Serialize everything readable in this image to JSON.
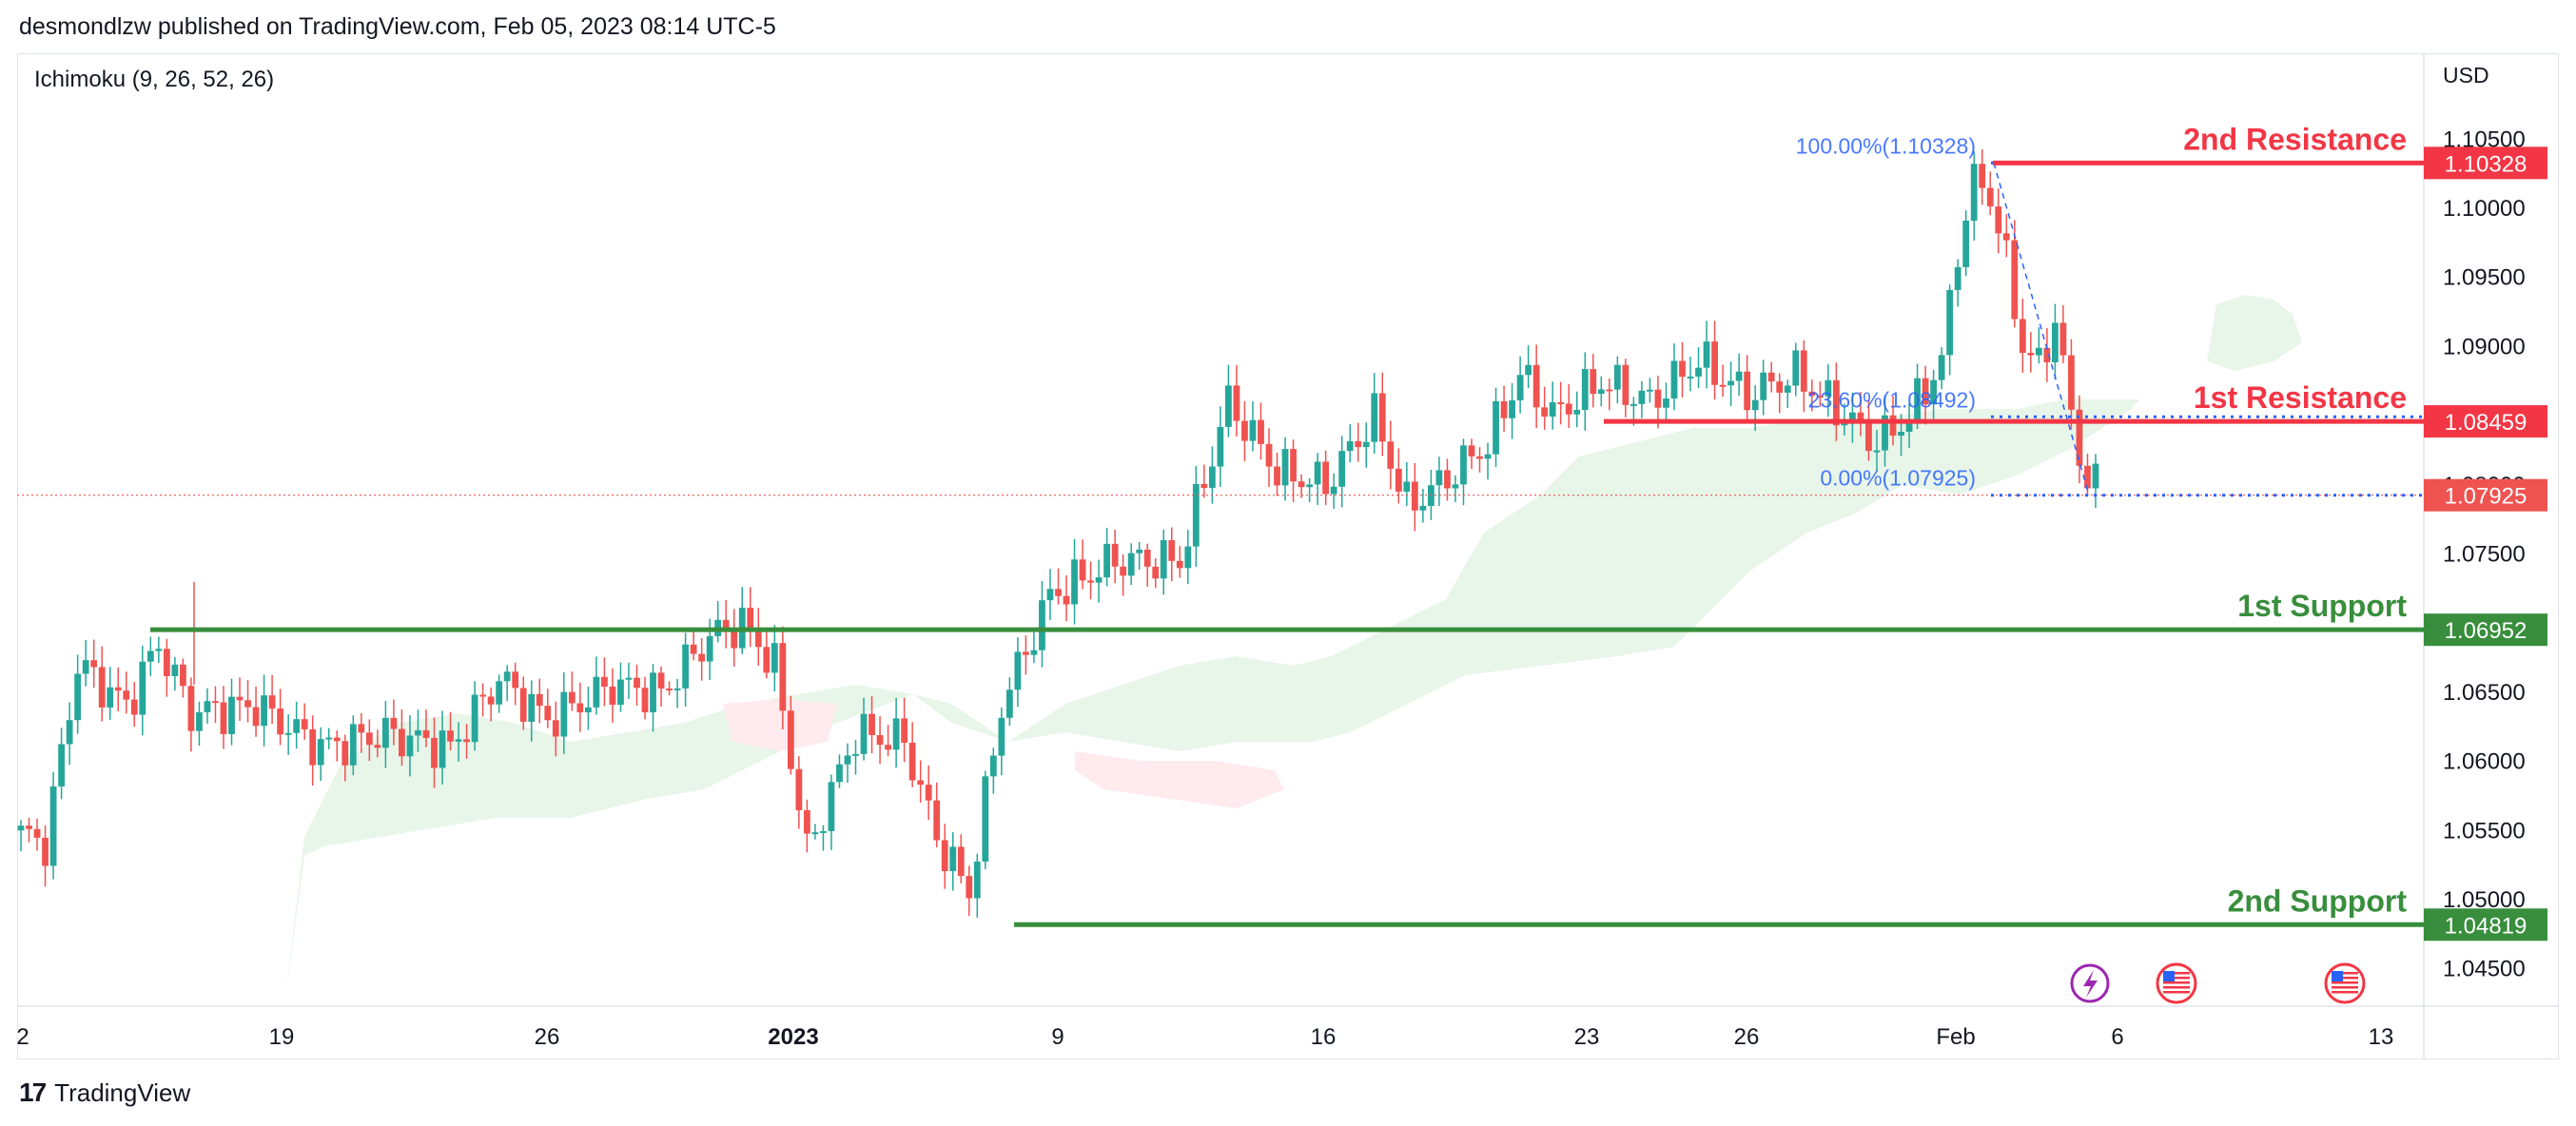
{
  "header": {
    "publisher_line": "desmondlzw published on TradingView.com, Feb 05, 2023 08:14 UTC-5"
  },
  "indicator": {
    "label": "Ichimoku (9, 26, 52, 26)"
  },
  "currency": "USD",
  "footer": {
    "logo": "17",
    "brand": "TradingView"
  },
  "colors": {
    "up": "#26a69a",
    "down": "#ef5350",
    "resistance": "#f23645",
    "support": "#388e3c",
    "fib": "#2962ff",
    "cloud_bull": "#e8f5e9",
    "cloud_bear": "#ffebee"
  },
  "events": {
    "icons": [
      "lightning-icon",
      "us-flag-icon",
      "us-flag-icon"
    ]
  },
  "chart_data": {
    "type": "candlestick",
    "symbol_pair_currency": "USD",
    "ylim": [
      1.0425,
      1.1075
    ],
    "y_ticks": [
      "1.10500",
      "1.10000",
      "1.09500",
      "1.09000",
      "1.08500",
      "1.08000",
      "1.07500",
      "1.07000",
      "1.06500",
      "1.06000",
      "1.05500",
      "1.05000",
      "1.04500"
    ],
    "x_ticks": [
      {
        "label": "2",
        "bold": false
      },
      {
        "label": "19",
        "bold": false
      },
      {
        "label": "26",
        "bold": false
      },
      {
        "label": "2023",
        "bold": true
      },
      {
        "label": "9",
        "bold": false
      },
      {
        "label": "16",
        "bold": false
      },
      {
        "label": "23",
        "bold": false
      },
      {
        "label": "26",
        "bold": false
      },
      {
        "label": "Feb",
        "bold": false
      },
      {
        "label": "6",
        "bold": false
      },
      {
        "label": "13",
        "bold": false
      }
    ],
    "levels": [
      {
        "name": "2nd Resistance",
        "value": 1.10328,
        "label": "1.10328",
        "kind": "resistance"
      },
      {
        "name": "1st Resistance",
        "value": 1.08459,
        "label": "1.08459",
        "kind": "resistance"
      },
      {
        "name": "1st Support",
        "value": 1.06952,
        "label": "1.06952",
        "kind": "support"
      },
      {
        "name": "2nd Support",
        "value": 1.04819,
        "label": "1.04819",
        "kind": "support"
      }
    ],
    "current_price": {
      "value": 1.07925,
      "label": "1.07925"
    },
    "fibonacci": [
      {
        "label": "100.00%(1.10328)",
        "value": 1.10328
      },
      {
        "label": "23.60%(1.08492)",
        "value": 1.08492
      },
      {
        "label": "0.00%(1.07925)",
        "value": 1.07925
      }
    ],
    "anchors": [
      [
        0,
        1.055
      ],
      [
        4,
        1.054
      ],
      [
        8,
        1.067
      ],
      [
        14,
        1.064
      ],
      [
        18,
        1.0685
      ],
      [
        22,
        1.0635
      ],
      [
        30,
        1.064
      ],
      [
        38,
        1.061
      ],
      [
        46,
        1.062
      ],
      [
        54,
        1.061
      ],
      [
        60,
        1.066
      ],
      [
        66,
        1.063
      ],
      [
        74,
        1.0655
      ],
      [
        80,
        1.065
      ],
      [
        86,
        1.069
      ],
      [
        90,
        1.07
      ],
      [
        94,
        1.067
      ],
      [
        98,
        1.0535
      ],
      [
        104,
        1.062
      ],
      [
        110,
        1.0615
      ],
      [
        114,
        1.0545
      ],
      [
        118,
        1.0505
      ],
      [
        122,
        1.064
      ],
      [
        128,
        1.072
      ],
      [
        136,
        1.0745
      ],
      [
        144,
        1.0745
      ],
      [
        150,
        1.086
      ],
      [
        156,
        1.081
      ],
      [
        162,
        1.08
      ],
      [
        168,
        1.085
      ],
      [
        172,
        1.0785
      ],
      [
        176,
        1.08
      ],
      [
        182,
        1.083
      ],
      [
        186,
        1.088
      ],
      [
        190,
        1.085
      ],
      [
        196,
        1.0875
      ],
      [
        202,
        1.086
      ],
      [
        208,
        1.089
      ],
      [
        214,
        1.0865
      ],
      [
        220,
        1.088
      ],
      [
        224,
        1.086
      ],
      [
        230,
        1.083
      ],
      [
        234,
        1.085
      ],
      [
        238,
        1.089
      ],
      [
        240,
        1.097
      ],
      [
        242,
        1.102
      ],
      [
        244,
        1.101
      ],
      [
        246,
        1.096
      ],
      [
        248,
        1.09
      ],
      [
        250,
        1.0885
      ],
      [
        252,
        1.092
      ],
      [
        254,
        1.085
      ],
      [
        256,
        1.08
      ]
    ]
  }
}
